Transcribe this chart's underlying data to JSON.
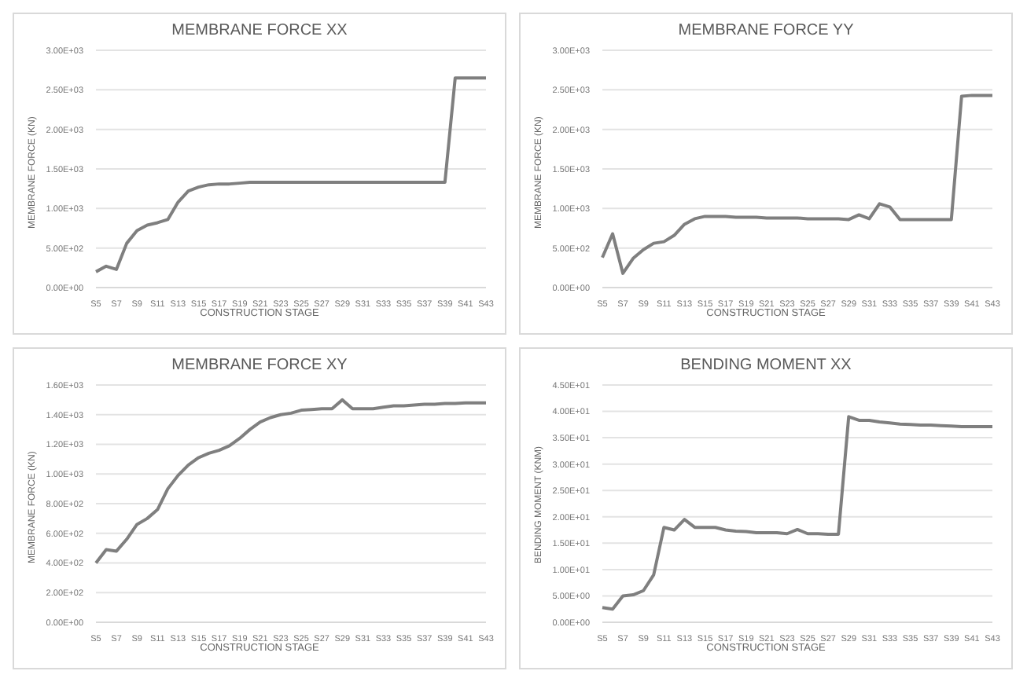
{
  "chart_data": [
    {
      "type": "line",
      "title": "MEMBRANE FORCE XX",
      "xlabel": "CONSTRUCTION STAGE",
      "ylabel": "MEMBRANE FORCE (KN)",
      "categories": [
        "S5",
        null,
        "S7",
        null,
        "S9",
        null,
        "S11",
        null,
        "S13",
        null,
        "S15",
        null,
        "S17",
        null,
        "S19",
        null,
        "S21",
        null,
        "S23",
        null,
        "S25",
        null,
        "S27",
        null,
        "S29",
        null,
        "S31",
        null,
        "S33",
        null,
        "S35",
        null,
        "S37",
        null,
        "S39",
        null,
        "S41",
        null,
        "S43"
      ],
      "series": [
        {
          "color": "#7f7f7f",
          "values": [
            200,
            270,
            230,
            560,
            720,
            790,
            820,
            860,
            1080,
            1220,
            1270,
            1300,
            1310,
            1310,
            1320,
            1330,
            1330,
            1330,
            1330,
            1330,
            1330,
            1330,
            1330,
            1330,
            1330,
            1330,
            1330,
            1330,
            1330,
            1330,
            1330,
            1330,
            1330,
            1330,
            1330,
            2650,
            2650,
            2650,
            2650
          ]
        }
      ],
      "ylim": [
        0,
        3000
      ],
      "yticks": [
        {
          "value": 0,
          "label": "0.00E+00"
        },
        {
          "value": 500,
          "label": "5.00E+02"
        },
        {
          "value": 1000,
          "label": "1.00E+03"
        },
        {
          "value": 1500,
          "label": "1.50E+03"
        },
        {
          "value": 2000,
          "label": "2.00E+03"
        },
        {
          "value": 2500,
          "label": "2.50E+03"
        },
        {
          "value": 3000,
          "label": "3.00E+03"
        }
      ],
      "grid": "y",
      "marker": "none",
      "line_style": "solid"
    },
    {
      "type": "line",
      "title": "MEMBRANE FORCE YY",
      "xlabel": "CONSTRUCTION STAGE",
      "ylabel": "MEMBRANE FORCE (KN)",
      "categories": [
        "S5",
        null,
        "S7",
        null,
        "S9",
        null,
        "S11",
        null,
        "S13",
        null,
        "S15",
        null,
        "S17",
        null,
        "S19",
        null,
        "S21",
        null,
        "S23",
        null,
        "S25",
        null,
        "S27",
        null,
        "S29",
        null,
        "S31",
        null,
        "S33",
        null,
        "S35",
        null,
        "S37",
        null,
        "S39",
        null,
        "S41",
        null,
        "S43"
      ],
      "series": [
        {
          "color": "#7f7f7f",
          "values": [
            380,
            680,
            180,
            370,
            480,
            560,
            580,
            660,
            800,
            870,
            900,
            900,
            900,
            890,
            890,
            890,
            880,
            880,
            880,
            880,
            870,
            870,
            870,
            870,
            860,
            920,
            870,
            1060,
            1020,
            860,
            860,
            860,
            860,
            860,
            860,
            2420,
            2430,
            2430,
            2430
          ]
        }
      ],
      "ylim": [
        0,
        3000
      ],
      "yticks": [
        {
          "value": 0,
          "label": "0.00E+00"
        },
        {
          "value": 500,
          "label": "5.00E+02"
        },
        {
          "value": 1000,
          "label": "1.00E+03"
        },
        {
          "value": 1500,
          "label": "1.50E+03"
        },
        {
          "value": 2000,
          "label": "2.00E+03"
        },
        {
          "value": 2500,
          "label": "2.50E+03"
        },
        {
          "value": 3000,
          "label": "3.00E+03"
        }
      ],
      "grid": "y",
      "marker": "none",
      "line_style": "solid"
    },
    {
      "type": "line",
      "title": "MEMBRANE FORCE XY",
      "xlabel": "CONSTRUCTION STAGE",
      "ylabel": "MEMBRANE FORCE (KN)",
      "categories": [
        "S5",
        null,
        "S7",
        null,
        "S9",
        null,
        "S11",
        null,
        "S13",
        null,
        "S15",
        null,
        "S17",
        null,
        "S19",
        null,
        "S21",
        null,
        "S23",
        null,
        "S25",
        null,
        "S27",
        null,
        "S29",
        null,
        "S31",
        null,
        "S33",
        null,
        "S35",
        null,
        "S37",
        null,
        "S39",
        null,
        "S41",
        null,
        "S43"
      ],
      "series": [
        {
          "color": "#7f7f7f",
          "values": [
            400,
            490,
            480,
            560,
            660,
            700,
            760,
            900,
            990,
            1060,
            1110,
            1140,
            1160,
            1190,
            1240,
            1300,
            1350,
            1380,
            1400,
            1410,
            1430,
            1435,
            1440,
            1440,
            1500,
            1440,
            1440,
            1440,
            1450,
            1460,
            1460,
            1465,
            1470,
            1470,
            1475,
            1475,
            1480,
            1480,
            1480
          ]
        }
      ],
      "ylim": [
        0,
        1600
      ],
      "yticks": [
        {
          "value": 0,
          "label": "0.00E+00"
        },
        {
          "value": 200,
          "label": "2.00E+02"
        },
        {
          "value": 400,
          "label": "4.00E+02"
        },
        {
          "value": 600,
          "label": "6.00E+02"
        },
        {
          "value": 800,
          "label": "8.00E+02"
        },
        {
          "value": 1000,
          "label": "1.00E+03"
        },
        {
          "value": 1200,
          "label": "1.20E+03"
        },
        {
          "value": 1400,
          "label": "1.40E+03"
        },
        {
          "value": 1600,
          "label": "1.60E+03"
        }
      ],
      "grid": "y",
      "marker": "none",
      "line_style": "solid"
    },
    {
      "type": "line",
      "title": "BENDING MOMENT XX",
      "xlabel": "CONSTRUCTION STAGE",
      "ylabel": "BENDING MOMENT (KNM)",
      "categories": [
        "S5",
        null,
        "S7",
        null,
        "S9",
        null,
        "S11",
        null,
        "S13",
        null,
        "S15",
        null,
        "S17",
        null,
        "S19",
        null,
        "S21",
        null,
        "S23",
        null,
        "S25",
        null,
        "S27",
        null,
        "S29",
        null,
        "S31",
        null,
        "S33",
        null,
        "S35",
        null,
        "S37",
        null,
        "S39",
        null,
        "S41",
        null,
        "S43"
      ],
      "series": [
        {
          "color": "#7f7f7f",
          "values": [
            2.8,
            2.5,
            5,
            5.2,
            6,
            9,
            18,
            17.5,
            19.5,
            18,
            18,
            18,
            17.5,
            17.3,
            17.2,
            17,
            17,
            17,
            16.8,
            17.6,
            16.8,
            16.8,
            16.7,
            16.7,
            39,
            38.3,
            38.3,
            38,
            37.8,
            37.6,
            37.5,
            37.4,
            37.4,
            37.3,
            37.2,
            37.1,
            37.1,
            37.1,
            37.1
          ]
        }
      ],
      "ylim": [
        0,
        45
      ],
      "yticks": [
        {
          "value": 0,
          "label": "0.00E+00"
        },
        {
          "value": 5,
          "label": "5.00E+00"
        },
        {
          "value": 10,
          "label": "1.00E+01"
        },
        {
          "value": 15,
          "label": "1.50E+01"
        },
        {
          "value": 20,
          "label": "2.00E+01"
        },
        {
          "value": 25,
          "label": "2.50E+01"
        },
        {
          "value": 30,
          "label": "3.00E+01"
        },
        {
          "value": 35,
          "label": "3.50E+01"
        },
        {
          "value": 40,
          "label": "4.00E+01"
        },
        {
          "value": 45,
          "label": "4.50E+01"
        }
      ],
      "grid": "y",
      "marker": "none",
      "line_style": "solid"
    }
  ]
}
